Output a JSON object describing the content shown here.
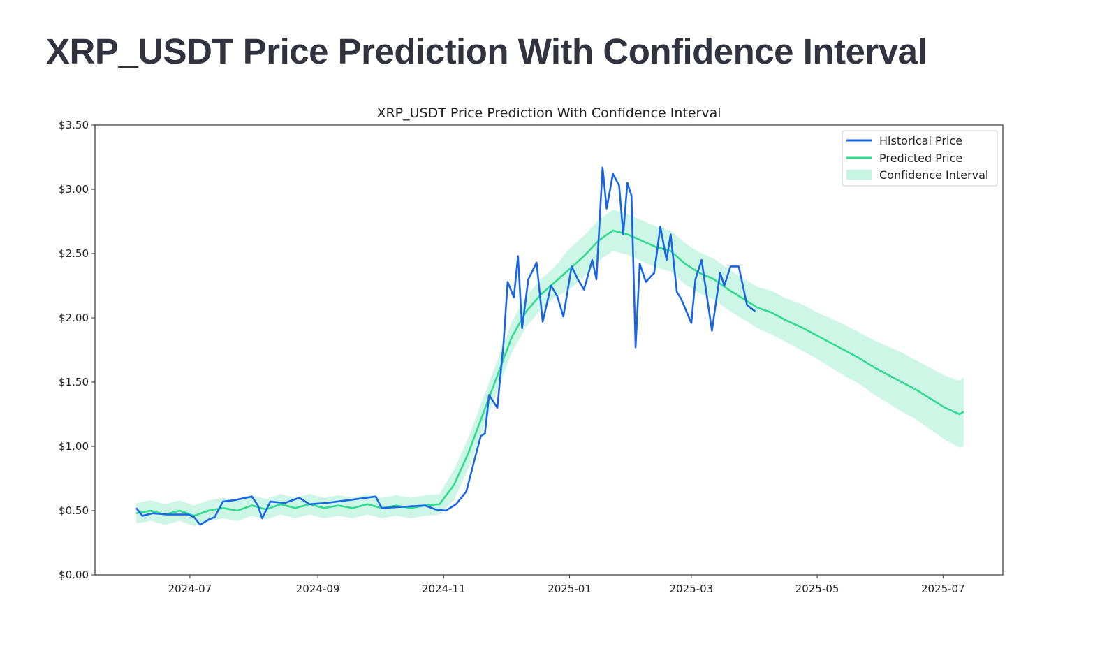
{
  "page": {
    "title": "XRP_USDT Price Prediction With Confidence Interval"
  },
  "chart_data": {
    "type": "line",
    "title": "XRP_USDT Price Prediction With Confidence Interval",
    "xlabel": "",
    "ylabel": "",
    "xlim": [
      "2024-05-16",
      "2025-07-30"
    ],
    "ylim": [
      0,
      3.5
    ],
    "y_ticks": [
      0,
      0.5,
      1.0,
      1.5,
      2.0,
      2.5,
      3.0,
      3.5
    ],
    "y_tick_labels": [
      "$0.00",
      "$0.50",
      "$1.00",
      "$1.50",
      "$2.00",
      "$2.50",
      "$3.00",
      "$3.50"
    ],
    "x_ticks": [
      "2024-07-01",
      "2024-09-01",
      "2024-11-01",
      "2025-01-01",
      "2025-03-01",
      "2025-05-01",
      "2025-07-01"
    ],
    "x_tick_labels": [
      "2024-07",
      "2024-09",
      "2024-11",
      "2025-01",
      "2025-03",
      "2025-05",
      "2025-07"
    ],
    "grid": false,
    "legend_position": "top-right",
    "legend": [
      "Historical Price",
      "Predicted Price",
      "Confidence Interval"
    ],
    "colors": {
      "historical": "#1766e8",
      "predicted": "#2fdc8f",
      "confidence": "#c6f5e2"
    },
    "series": [
      {
        "name": "Historical Price",
        "x": [
          "2024-06-05",
          "2024-06-08",
          "2024-06-13",
          "2024-06-20",
          "2024-06-30",
          "2024-07-03",
          "2024-07-06",
          "2024-07-10",
          "2024-07-13",
          "2024-07-17",
          "2024-07-22",
          "2024-07-31",
          "2024-08-03",
          "2024-08-05",
          "2024-08-09",
          "2024-08-16",
          "2024-08-23",
          "2024-08-28",
          "2024-09-05",
          "2024-09-15",
          "2024-09-29",
          "2024-10-02",
          "2024-10-12",
          "2024-10-23",
          "2024-10-28",
          "2024-11-02",
          "2024-11-07",
          "2024-11-12",
          "2024-11-16",
          "2024-11-19",
          "2024-11-21",
          "2024-11-23",
          "2024-11-27",
          "2024-11-30",
          "2024-12-02",
          "2024-12-05",
          "2024-12-07",
          "2024-12-09",
          "2024-12-12",
          "2024-12-16",
          "2024-12-19",
          "2024-12-23",
          "2024-12-26",
          "2024-12-29",
          "2025-01-02",
          "2025-01-05",
          "2025-01-08",
          "2025-01-12",
          "2025-01-14",
          "2025-01-17",
          "2025-01-19",
          "2025-01-22",
          "2025-01-25",
          "2025-01-27",
          "2025-01-29",
          "2025-01-31",
          "2025-02-02",
          "2025-02-04",
          "2025-02-07",
          "2025-02-11",
          "2025-02-14",
          "2025-02-17",
          "2025-02-19",
          "2025-02-22",
          "2025-02-24",
          "2025-03-01",
          "2025-03-03",
          "2025-03-06",
          "2025-03-11",
          "2025-03-15",
          "2025-03-17",
          "2025-03-20",
          "2025-03-24",
          "2025-03-28",
          "2025-04-01"
        ],
        "values": [
          0.52,
          0.46,
          0.48,
          0.47,
          0.47,
          0.45,
          0.39,
          0.43,
          0.45,
          0.57,
          0.58,
          0.61,
          0.54,
          0.44,
          0.57,
          0.56,
          0.6,
          0.55,
          0.56,
          0.58,
          0.61,
          0.52,
          0.53,
          0.54,
          0.51,
          0.5,
          0.55,
          0.65,
          0.9,
          1.08,
          1.1,
          1.4,
          1.3,
          1.8,
          2.28,
          2.16,
          2.48,
          1.92,
          2.3,
          2.43,
          1.97,
          2.25,
          2.17,
          2.01,
          2.4,
          2.3,
          2.22,
          2.45,
          2.3,
          3.17,
          2.85,
          3.12,
          3.03,
          2.65,
          3.05,
          2.95,
          1.77,
          2.42,
          2.28,
          2.35,
          2.71,
          2.45,
          2.65,
          2.2,
          2.15,
          1.96,
          2.3,
          2.45,
          1.9,
          2.35,
          2.25,
          2.4,
          2.4,
          2.1,
          2.05
        ]
      },
      {
        "name": "Predicted Price",
        "x": [
          "2024-06-05",
          "2024-06-12",
          "2024-06-19",
          "2024-06-26",
          "2024-07-03",
          "2024-07-10",
          "2024-07-17",
          "2024-07-24",
          "2024-07-31",
          "2024-08-07",
          "2024-08-14",
          "2024-08-21",
          "2024-08-28",
          "2024-09-04",
          "2024-09-11",
          "2024-09-18",
          "2024-09-25",
          "2024-10-02",
          "2024-10-09",
          "2024-10-16",
          "2024-10-23",
          "2024-10-30",
          "2024-11-06",
          "2024-11-13",
          "2024-11-20",
          "2024-11-27",
          "2024-12-04",
          "2024-12-11",
          "2024-12-18",
          "2024-12-25",
          "2025-01-01",
          "2025-01-08",
          "2025-01-15",
          "2025-01-22",
          "2025-01-29",
          "2025-02-05",
          "2025-02-12",
          "2025-02-19",
          "2025-02-26",
          "2025-03-05",
          "2025-03-12",
          "2025-03-19",
          "2025-03-26",
          "2025-04-02",
          "2025-04-09",
          "2025-04-16",
          "2025-04-23",
          "2025-04-30",
          "2025-05-07",
          "2025-05-14",
          "2025-05-21",
          "2025-05-28",
          "2025-06-04",
          "2025-06-11",
          "2025-06-18",
          "2025-06-25",
          "2025-07-02",
          "2025-07-09",
          "2025-07-11"
        ],
        "values": [
          0.48,
          0.5,
          0.47,
          0.5,
          0.46,
          0.5,
          0.52,
          0.5,
          0.54,
          0.51,
          0.55,
          0.52,
          0.55,
          0.52,
          0.54,
          0.52,
          0.55,
          0.52,
          0.54,
          0.52,
          0.54,
          0.55,
          0.7,
          0.95,
          1.25,
          1.55,
          1.85,
          2.05,
          2.18,
          2.28,
          2.38,
          2.48,
          2.6,
          2.68,
          2.65,
          2.6,
          2.55,
          2.52,
          2.42,
          2.35,
          2.3,
          2.22,
          2.15,
          2.08,
          2.04,
          1.98,
          1.93,
          1.87,
          1.81,
          1.75,
          1.69,
          1.62,
          1.56,
          1.5,
          1.44,
          1.37,
          1.3,
          1.25,
          1.27
        ],
        "lower": [
          0.4,
          0.42,
          0.39,
          0.42,
          0.38,
          0.42,
          0.44,
          0.42,
          0.46,
          0.43,
          0.47,
          0.44,
          0.47,
          0.44,
          0.46,
          0.44,
          0.47,
          0.44,
          0.46,
          0.44,
          0.46,
          0.47,
          0.58,
          0.83,
          1.13,
          1.43,
          1.73,
          1.93,
          2.06,
          2.16,
          2.22,
          2.32,
          2.44,
          2.52,
          2.49,
          2.44,
          2.39,
          2.36,
          2.26,
          2.19,
          2.14,
          2.06,
          1.99,
          1.92,
          1.87,
          1.81,
          1.75,
          1.69,
          1.62,
          1.55,
          1.49,
          1.41,
          1.34,
          1.27,
          1.21,
          1.13,
          1.05,
          0.99,
          1.0
        ],
        "upper": [
          0.56,
          0.58,
          0.55,
          0.58,
          0.54,
          0.58,
          0.6,
          0.58,
          0.62,
          0.59,
          0.63,
          0.6,
          0.63,
          0.6,
          0.62,
          0.6,
          0.63,
          0.6,
          0.62,
          0.6,
          0.62,
          0.63,
          0.82,
          1.07,
          1.37,
          1.67,
          1.97,
          2.17,
          2.3,
          2.4,
          2.54,
          2.64,
          2.76,
          2.84,
          2.81,
          2.76,
          2.71,
          2.68,
          2.58,
          2.51,
          2.46,
          2.38,
          2.31,
          2.24,
          2.21,
          2.15,
          2.11,
          2.05,
          2.0,
          1.95,
          1.89,
          1.83,
          1.78,
          1.73,
          1.67,
          1.61,
          1.55,
          1.51,
          1.54
        ]
      }
    ]
  }
}
